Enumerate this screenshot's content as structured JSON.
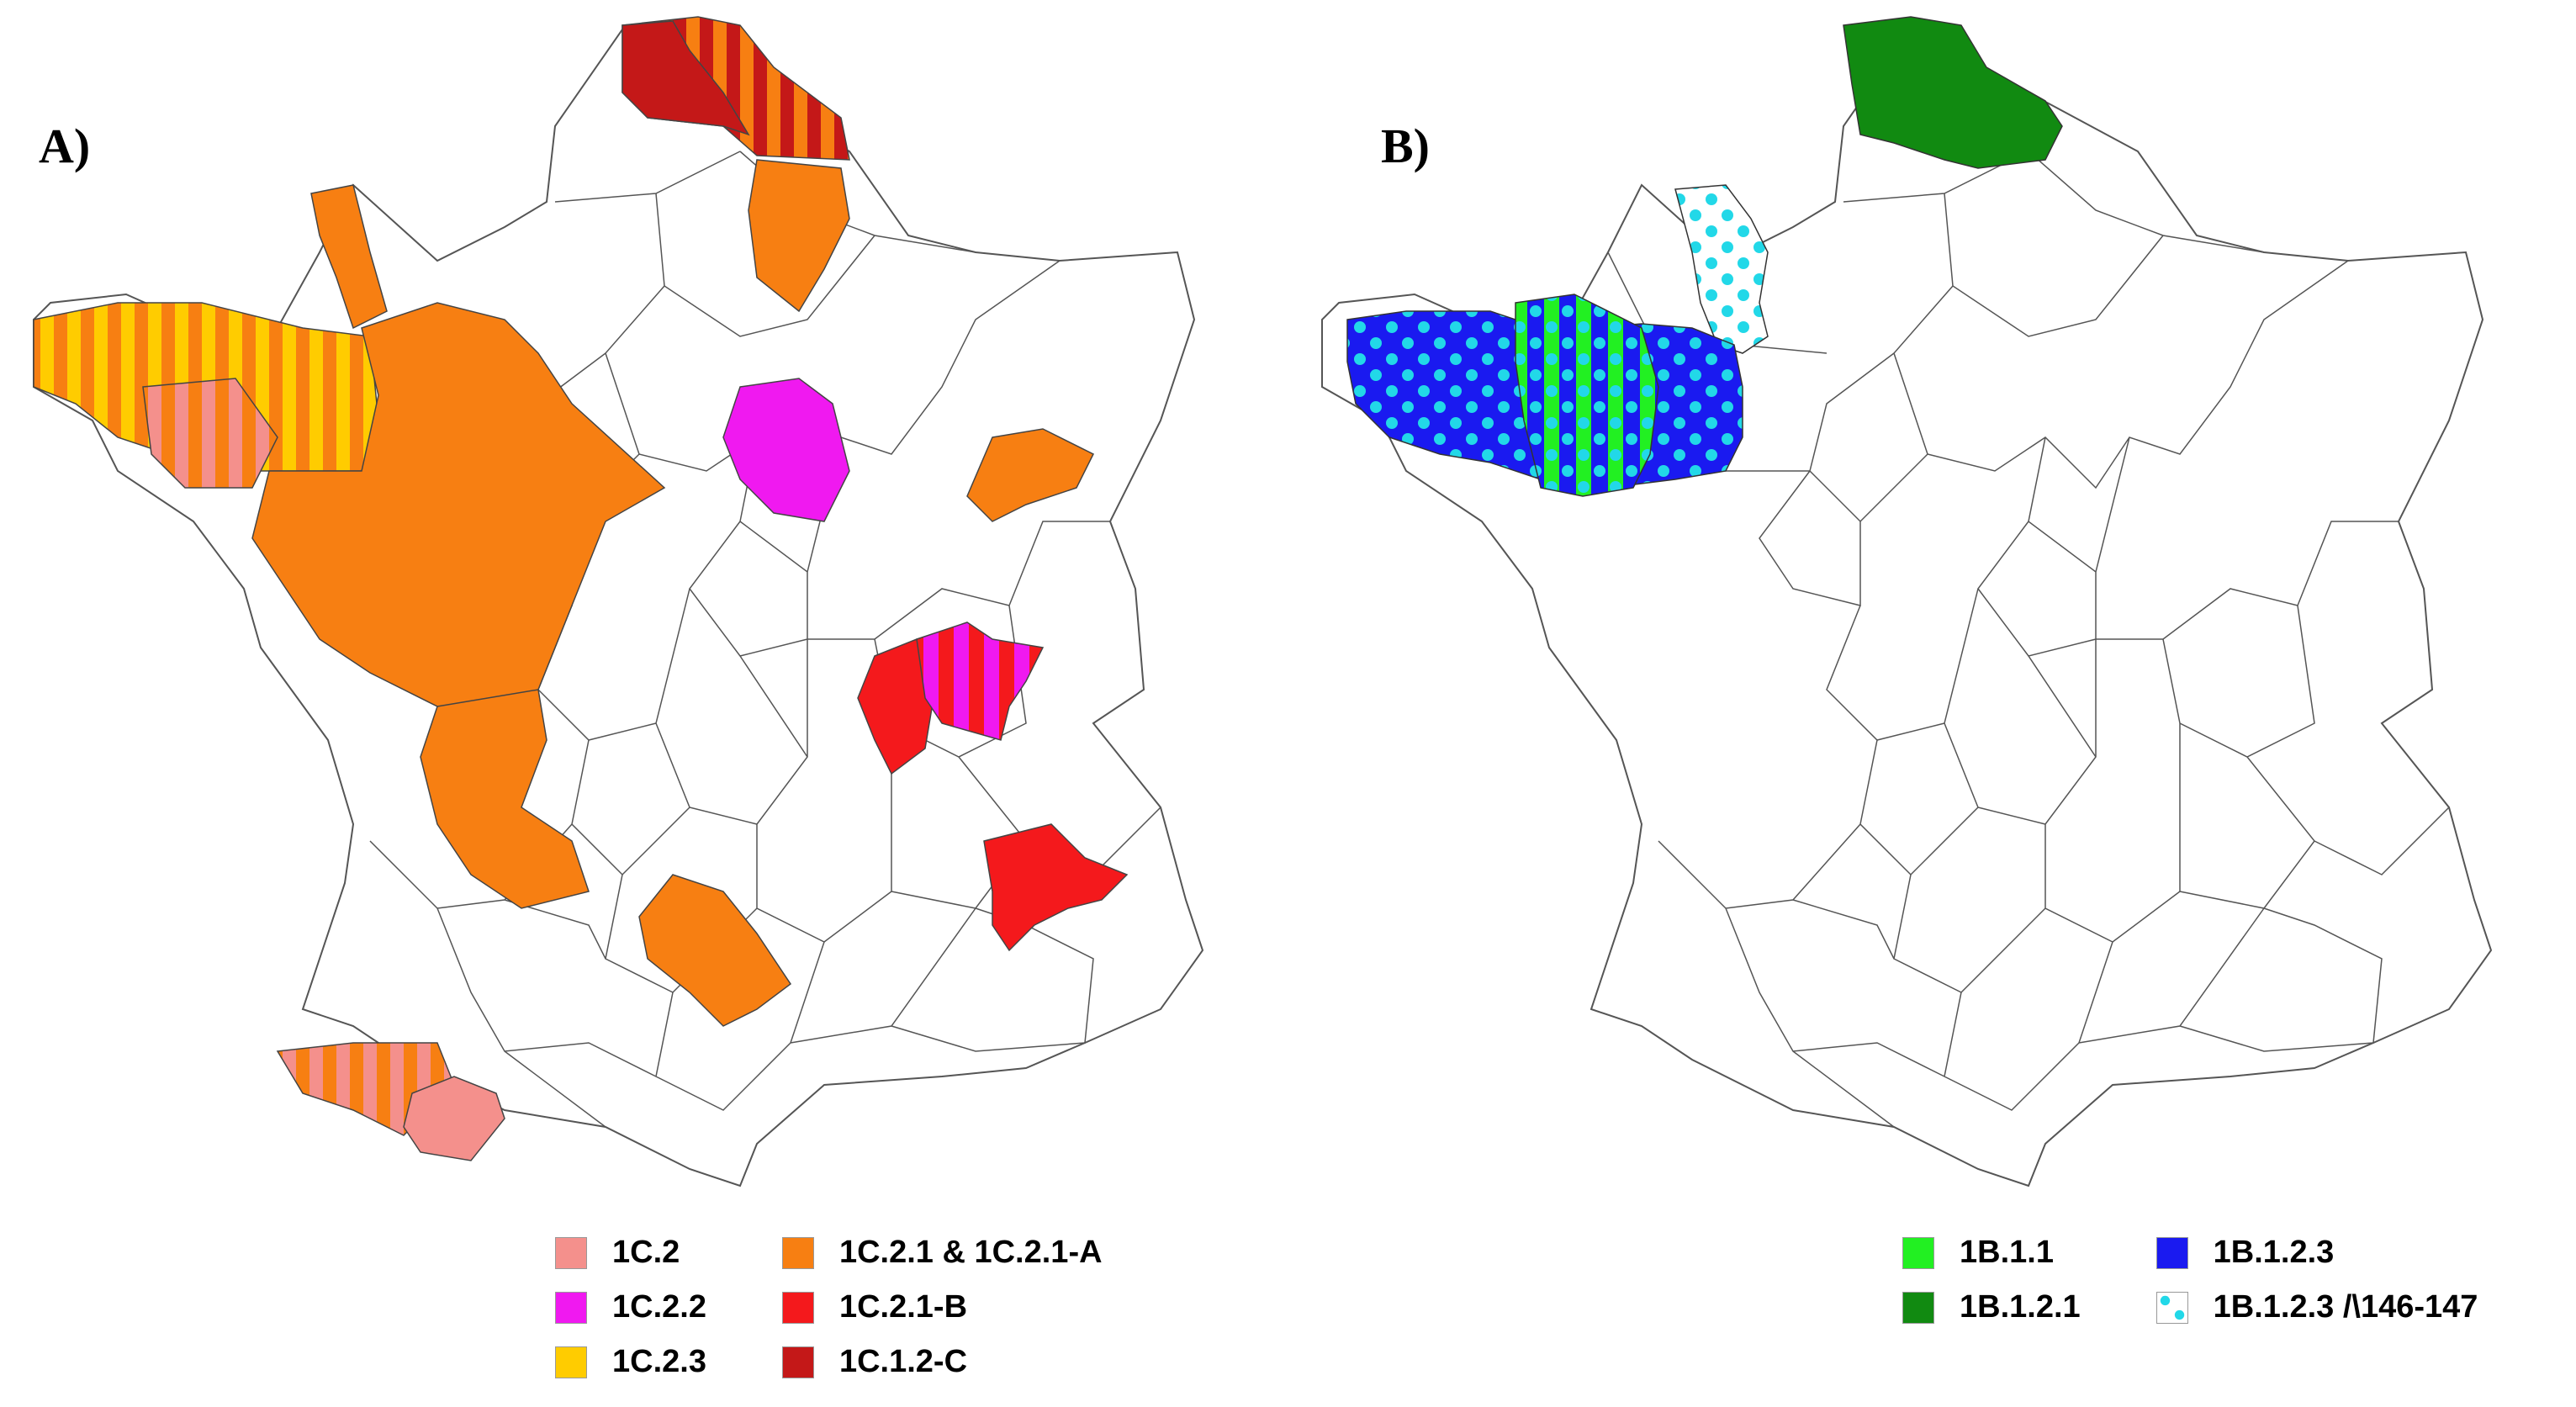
{
  "panels": [
    {
      "label": "A)",
      "legend": [
        {
          "label": "1C.2",
          "color": "#F4908C"
        },
        {
          "label": "1C.2.1 & 1C.2.1-A",
          "color": "#F77F12"
        },
        {
          "label": "1C.2.2",
          "color": "#F019F0"
        },
        {
          "label": "1C.2.1-B",
          "color": "#F4191C"
        },
        {
          "label": "1C.2.3",
          "color": "#FFCC00"
        },
        {
          "label": "1C.1.2-C",
          "color": "#C41818"
        }
      ]
    },
    {
      "label": "B)",
      "legend": [
        {
          "label": "1B.1.1",
          "color": "#22F022"
        },
        {
          "label": "1B.1.2.3",
          "color": "#1A1AF0"
        },
        {
          "label": "1B.1.2.1",
          "color": "#118A11"
        },
        {
          "label": "1B.1.2.3 /\\146-147",
          "color": "#FFFFFF",
          "pattern": "cyan-dots"
        }
      ]
    }
  ],
  "colors": {
    "border": "#555555",
    "cyan_dot": "#22D8E8"
  }
}
